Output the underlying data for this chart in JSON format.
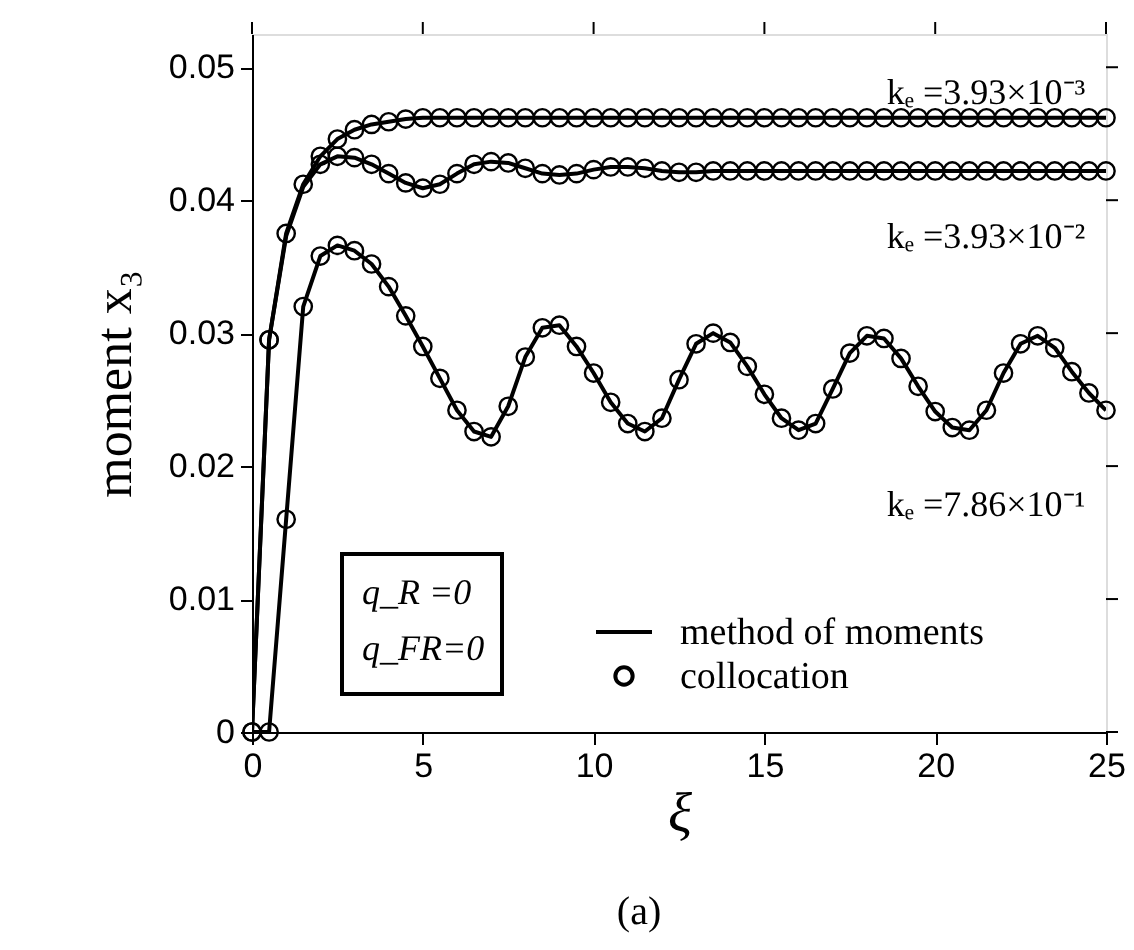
{
  "chart_data": {
    "type": "line",
    "xlabel": "ξ",
    "ylabel": "moment x₃",
    "x": [
      0,
      0.5,
      1,
      1.5,
      2,
      2.5,
      3,
      3.5,
      4,
      4.5,
      5,
      5.5,
      6,
      6.5,
      7,
      7.5,
      8,
      8.5,
      9,
      9.5,
      10,
      10.5,
      11,
      11.5,
      12,
      12.5,
      13,
      13.5,
      14,
      14.5,
      15,
      15.5,
      16,
      16.5,
      17,
      17.5,
      18,
      18.5,
      19,
      19.5,
      20,
      20.5,
      21,
      21.5,
      22,
      22.5,
      23,
      23.5,
      24,
      24.5,
      25
    ],
    "series": [
      {
        "name": "method of moments",
        "color": "#000000",
        "marker": "none",
        "values": [
          0,
          0.0295,
          0.0375,
          0.0412,
          0.0433,
          0.0446,
          0.0453,
          0.0457,
          0.0459,
          0.0461,
          0.0462,
          0.0462,
          0.0462,
          0.0462,
          0.0462,
          0.0462,
          0.0462,
          0.0462,
          0.0462,
          0.0462,
          0.0462,
          0.0462,
          0.0462,
          0.0462,
          0.0462,
          0.0462,
          0.0462,
          0.0462,
          0.0462,
          0.0462,
          0.0462,
          0.0462,
          0.0462,
          0.0462,
          0.0462,
          0.0462,
          0.0462,
          0.0462,
          0.0462,
          0.0462,
          0.0462,
          0.0462,
          0.0462,
          0.0462,
          0.0462,
          0.0462,
          0.0462,
          0.0462,
          0.0462,
          0.0462,
          0.0462
        ]
      },
      {
        "color": "#000000",
        "marker": "none",
        "values": [
          0,
          0.0295,
          0.0373,
          0.041,
          0.0427,
          0.0433,
          0.0432,
          0.0427,
          0.042,
          0.0413,
          0.0409,
          0.0412,
          0.042,
          0.0427,
          0.0429,
          0.0428,
          0.0424,
          0.042,
          0.0419,
          0.042,
          0.0423,
          0.0425,
          0.0425,
          0.0424,
          0.0422,
          0.0421,
          0.0421,
          0.0422,
          0.0422,
          0.0422,
          0.0422,
          0.0422,
          0.0422,
          0.0422,
          0.0422,
          0.0422,
          0.0422,
          0.0422,
          0.0422,
          0.0422,
          0.0422,
          0.0422,
          0.0422,
          0.0422,
          0.0422,
          0.0422,
          0.0422,
          0.0422,
          0.0422,
          0.0422,
          0.0422
        ]
      },
      {
        "color": "#000000",
        "marker": "none",
        "values": [
          0,
          0,
          0.016,
          0.032,
          0.0358,
          0.0366,
          0.0362,
          0.0352,
          0.0335,
          0.0313,
          0.029,
          0.0266,
          0.0242,
          0.0226,
          0.0222,
          0.0245,
          0.0282,
          0.0304,
          0.0306,
          0.029,
          0.027,
          0.0248,
          0.0232,
          0.0226,
          0.0236,
          0.0265,
          0.0292,
          0.03,
          0.0293,
          0.0275,
          0.0254,
          0.0236,
          0.0227,
          0.0232,
          0.0258,
          0.0285,
          0.0298,
          0.0296,
          0.0281,
          0.026,
          0.0241,
          0.0229,
          0.0227,
          0.0242,
          0.027,
          0.0292,
          0.0298,
          0.0289,
          0.0271,
          0.0255,
          0.0242
        ]
      },
      {
        "type": "scatter",
        "name": "collocation",
        "color": "#000000",
        "marker": "circle",
        "values": [
          0,
          0.0295,
          0.0375,
          0.0412,
          0.0433,
          0.0446,
          0.0453,
          0.0457,
          0.0459,
          0.0461,
          0.0462,
          0.0462,
          0.0462,
          0.0462,
          0.0462,
          0.0462,
          0.0462,
          0.0462,
          0.0462,
          0.0462,
          0.0462,
          0.0462,
          0.0462,
          0.0462,
          0.0462,
          0.0462,
          0.0462,
          0.0462,
          0.0462,
          0.0462,
          0.0462,
          0.0462,
          0.0462,
          0.0462,
          0.0462,
          0.0462,
          0.0462,
          0.0462,
          0.0462,
          0.0462,
          0.0462,
          0.0462,
          0.0462,
          0.0462,
          0.0462,
          0.0462,
          0.0462,
          0.0462,
          0.0462,
          0.0462,
          0.0462
        ]
      },
      {
        "type": "scatter",
        "color": "#000000",
        "marker": "circle",
        "values": [
          null,
          0.0295,
          null,
          null,
          0.0427,
          0.0433,
          0.0432,
          0.0427,
          0.042,
          0.0413,
          0.0409,
          0.0412,
          0.042,
          0.0427,
          0.0429,
          0.0428,
          0.0424,
          0.042,
          0.0419,
          0.042,
          0.0423,
          0.0425,
          0.0425,
          0.0424,
          0.0422,
          0.0421,
          0.0421,
          0.0422,
          0.0422,
          0.0422,
          0.0422,
          0.0422,
          0.0422,
          0.0422,
          0.0422,
          0.0422,
          0.0422,
          0.0422,
          0.0422,
          0.0422,
          0.0422,
          0.0422,
          0.0422,
          0.0422,
          0.0422,
          0.0422,
          0.0422,
          0.0422,
          0.0422,
          0.0422,
          0.0422
        ]
      },
      {
        "type": "scatter",
        "color": "#000000",
        "marker": "circle",
        "values": [
          0,
          0,
          0.016,
          0.032,
          0.0358,
          0.0366,
          0.0362,
          0.0352,
          0.0335,
          0.0313,
          0.029,
          0.0266,
          0.0242,
          0.0226,
          0.0222,
          0.0245,
          0.0282,
          0.0304,
          0.0306,
          0.029,
          0.027,
          0.0248,
          0.0232,
          0.0226,
          0.0236,
          0.0265,
          0.0292,
          0.03,
          0.0293,
          0.0275,
          0.0254,
          0.0236,
          0.0227,
          0.0232,
          0.0258,
          0.0285,
          0.0298,
          0.0296,
          0.0281,
          0.026,
          0.0241,
          0.0229,
          0.0227,
          0.0242,
          0.027,
          0.0292,
          0.0298,
          0.0289,
          0.0271,
          0.0255,
          0.0242
        ]
      }
    ],
    "xlim": [
      0,
      25
    ],
    "xticks": [
      0,
      5,
      10,
      15,
      20,
      25
    ],
    "ylim": [
      0,
      0.0525
    ],
    "yticks": [
      0,
      0.01,
      0.02,
      0.03,
      0.04,
      0.05
    ],
    "legend": "bottom right",
    "grid": false,
    "annotations": [
      "kₑ =3.93×10⁻³",
      "kₑ =3.93×10⁻²",
      "kₑ =7.86×10⁻¹",
      "q_R =0",
      "q_FR=0",
      "(a)"
    ]
  }
}
